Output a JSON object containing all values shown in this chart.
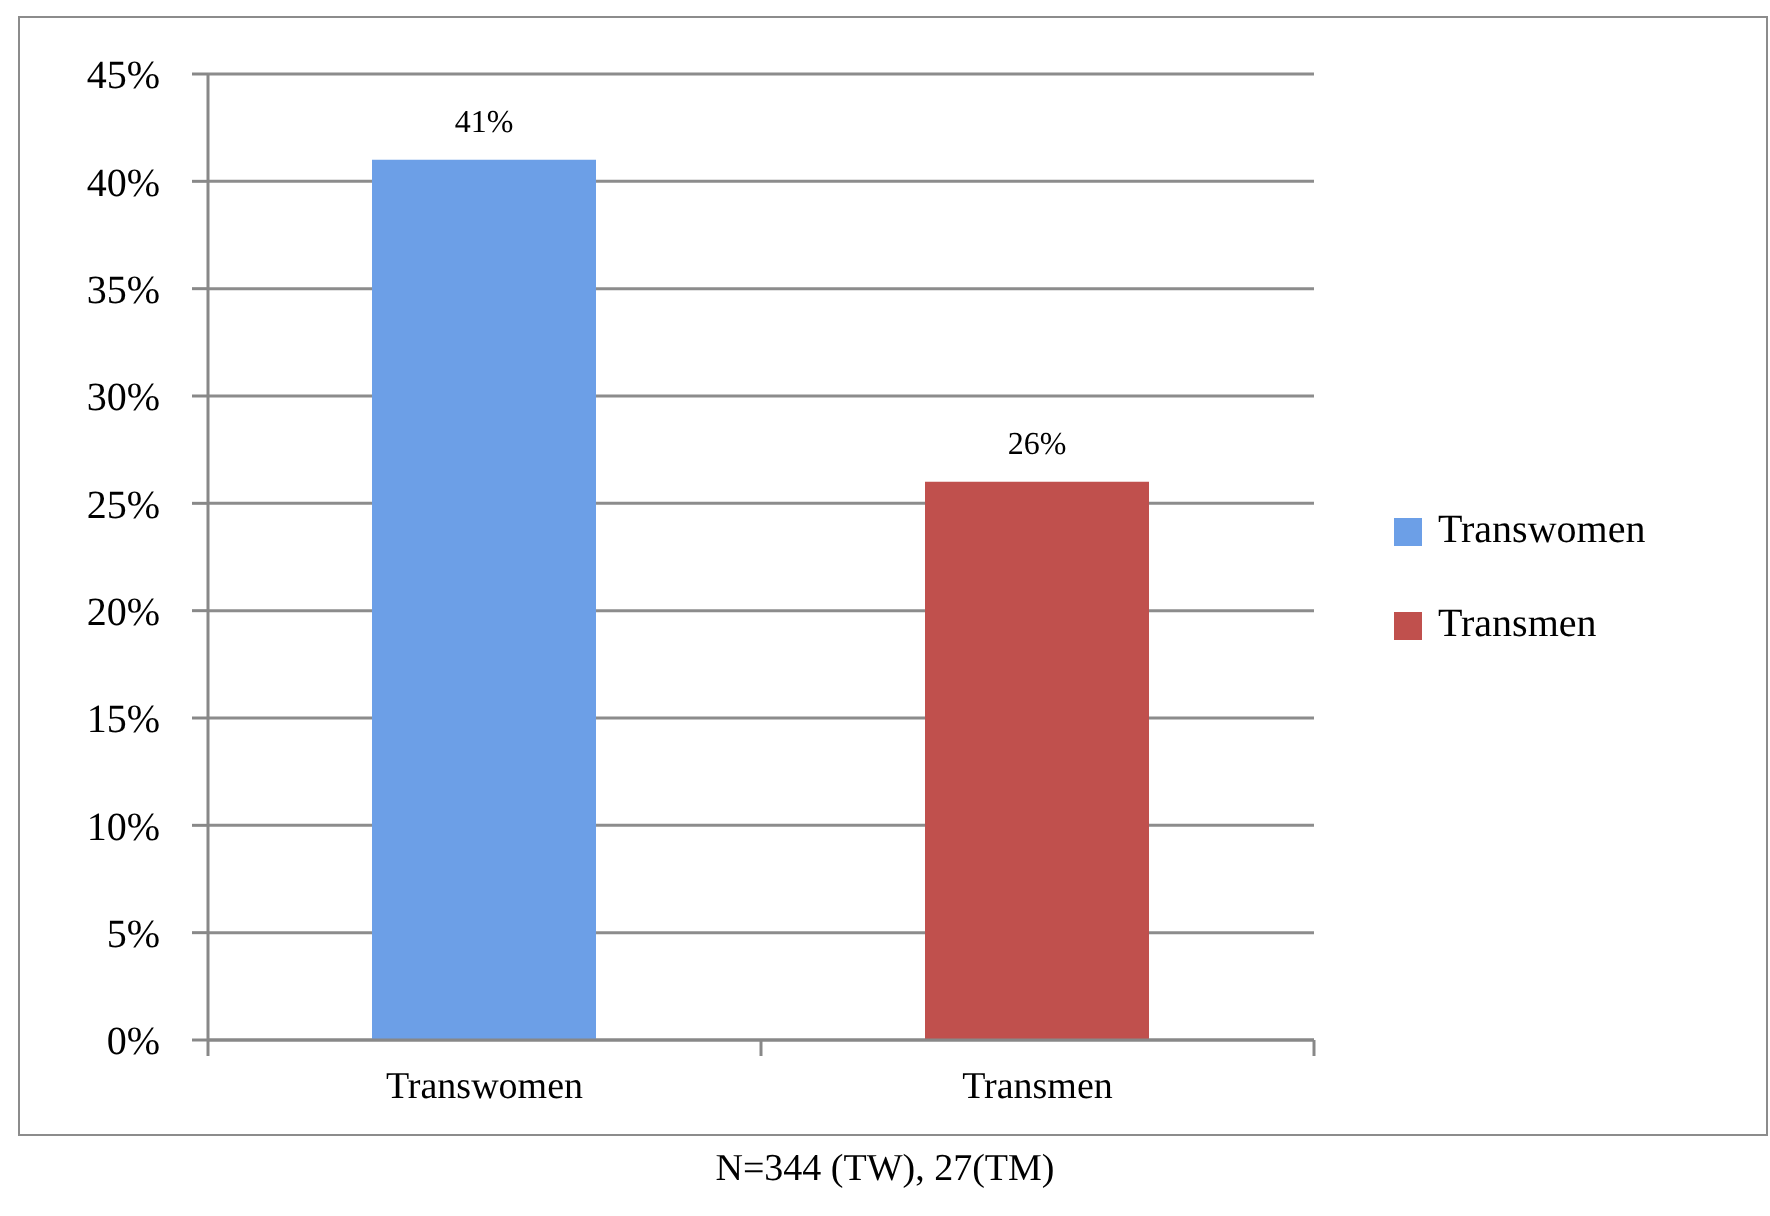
{
  "chart_data": {
    "type": "bar",
    "categories": [
      "Transwomen",
      "Transmen"
    ],
    "series": [
      {
        "name": "Transwomen",
        "color": "#6c9fe7",
        "values": [
          41,
          null
        ],
        "value_labels": [
          "41%",
          null
        ]
      },
      {
        "name": "Transmen",
        "color": "#c0504d",
        "values": [
          null,
          26
        ],
        "value_labels": [
          null,
          "26%"
        ]
      }
    ],
    "ylim": [
      0,
      45
    ],
    "yticks": [
      {
        "value": 0,
        "label": "0%"
      },
      {
        "value": 5,
        "label": "5%"
      },
      {
        "value": 10,
        "label": "10%"
      },
      {
        "value": 15,
        "label": "15%"
      },
      {
        "value": 20,
        "label": "20%"
      },
      {
        "value": 25,
        "label": "25%"
      },
      {
        "value": 30,
        "label": "30%"
      },
      {
        "value": 35,
        "label": "35%"
      },
      {
        "value": 40,
        "label": "40%"
      },
      {
        "value": 45,
        "label": "45%"
      }
    ],
    "grid": "y",
    "legend": "right",
    "annotations": [
      "N=344 (TW), 27(TM)"
    ]
  }
}
